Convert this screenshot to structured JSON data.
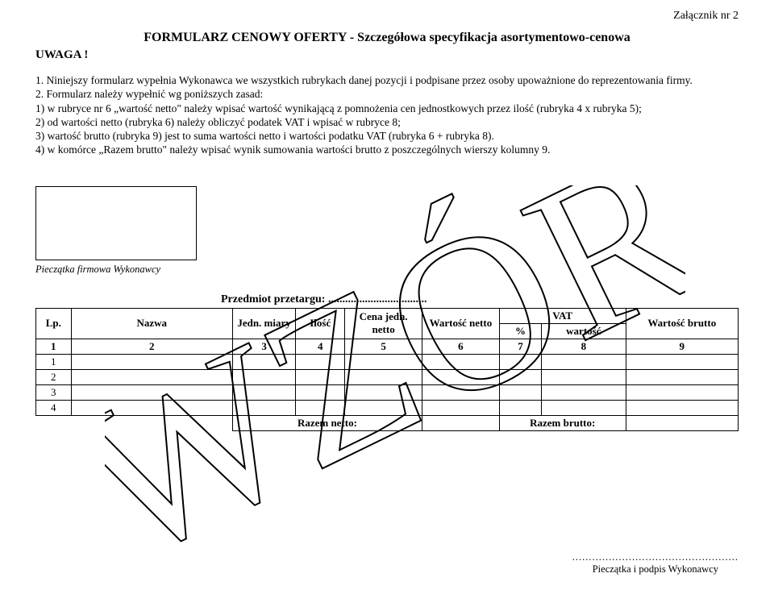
{
  "attachment_label": "Załącznik nr 2",
  "title": "FORMULARZ CENOWY OFERTY  -  Szczegółowa specyfikacja asortymentowo-cenowa",
  "uwaga": "UWAGA !",
  "paragraph": "1. Niniejszy formularz wypełnia Wykonawca we wszystkich rubrykach danej pozycji i podpisane przez osoby upoważnione do reprezentowania firmy.\n2. Formularz należy wypełnić wg poniższych zasad:\n1) w rubryce nr 6 „wartość netto\" należy wpisać wartość wynikającą z pomnożenia cen jednostkowych przez ilość (rubryka 4 x rubryka 5);\n2) od wartości netto (rubryka 6) należy obliczyć podatek VAT i wpisać w rubryce 8;\n3) wartość brutto (rubryka 9) jest to suma wartości netto i wartości podatku VAT (rubryka 6 + rubryka 8).\n4) w komórce „Razem brutto\" należy wpisać wynik sumowania wartości brutto z poszczególnych wierszy kolumny 9.",
  "stamp_label": "Pieczątka firmowa Wykonawcy",
  "subject_label": "Przedmiot przetargu: ...................................",
  "table": {
    "headers": {
      "lp": "Lp.",
      "nazwa": "Nazwa",
      "jedn": "Jedn. miary",
      "ilosc": "Ilość",
      "cena": "Cena jedn. netto",
      "wart_netto": "Wartość netto",
      "vat_pct": "%",
      "vat_head": "VAT",
      "vat_wart": "wartość",
      "wart_brutto": "Wartość brutto"
    },
    "num_row": [
      "1",
      "2",
      "3",
      "4",
      "5",
      "6",
      "7",
      "8",
      "9"
    ],
    "data_rows": [
      "1",
      "2",
      "3",
      "4"
    ],
    "razem_netto": "Razem netto:",
    "razem_brutto": "Razem brutto:"
  },
  "signature_dots": "..................................................",
  "signature_label": "Pieczątka i podpis Wykonawcy",
  "watermark_text": "WZÓR",
  "colors": {
    "text": "#000000",
    "background": "#ffffff",
    "border": "#000000"
  },
  "col_widths_pct": [
    5,
    23,
    9,
    7,
    11,
    11,
    6,
    12,
    16
  ]
}
